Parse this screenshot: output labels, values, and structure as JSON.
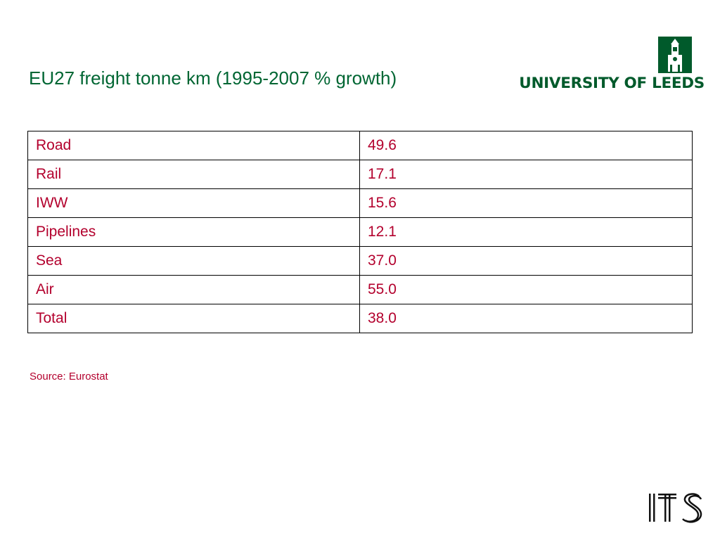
{
  "title": "EU27 freight tonne km (1995-2007 % growth)",
  "logo": {
    "text": "UNIVERSITY OF LEEDS"
  },
  "its_logo": "ITS",
  "table": {
    "rows": [
      {
        "mode": "Road",
        "value": "49.6"
      },
      {
        "mode": "Rail",
        "value": "17.1"
      },
      {
        "mode": "IWW",
        "value": "15.6"
      },
      {
        "mode": "Pipelines",
        "value": "12.1"
      },
      {
        "mode": "Sea",
        "value": "37.0"
      },
      {
        "mode": "Air",
        "value": "55.0"
      },
      {
        "mode": "Total",
        "value": "38.0"
      }
    ]
  },
  "source": "Source: Eurostat",
  "colors": {
    "title": "#006633",
    "text": "#b3002d",
    "logo_green": "#005a2b"
  }
}
